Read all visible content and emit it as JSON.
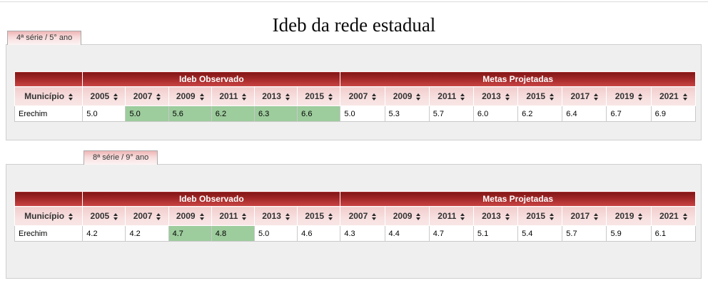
{
  "page": {
    "title": "Ideb da rede estadual"
  },
  "icons": {
    "sort": "triangle-up-down-sort-arrows"
  },
  "colors": {
    "header_red_top": "#801616",
    "header_red_bottom": "#ca4545",
    "header_pink": "#f6d9d9",
    "highlight_green": "#9dcc9d",
    "panel_gray": "#efefef"
  },
  "tables": [
    {
      "tab": "4ª série / 5° ano",
      "col_municipio": "Município",
      "group_observado": "Ideb Observado",
      "group_metas": "Metas Projetadas",
      "row_name": "Erechim",
      "obs": [
        {
          "year": "2005",
          "value": "5.0",
          "green": false
        },
        {
          "year": "2007",
          "value": "5.0",
          "green": true
        },
        {
          "year": "2009",
          "value": "5.6",
          "green": true
        },
        {
          "year": "2011",
          "value": "6.2",
          "green": true
        },
        {
          "year": "2013",
          "value": "6.3",
          "green": true
        },
        {
          "year": "2015",
          "value": "6.6",
          "green": true
        }
      ],
      "meta": [
        {
          "year": "2007",
          "value": "5.0"
        },
        {
          "year": "2009",
          "value": "5.3"
        },
        {
          "year": "2011",
          "value": "5.7"
        },
        {
          "year": "2013",
          "value": "6.0"
        },
        {
          "year": "2015",
          "value": "6.2"
        },
        {
          "year": "2017",
          "value": "6.4"
        },
        {
          "year": "2019",
          "value": "6.7"
        },
        {
          "year": "2021",
          "value": "6.9"
        }
      ]
    },
    {
      "tab": "8ª série / 9° ano",
      "col_municipio": "Município",
      "group_observado": "Ideb Observado",
      "group_metas": "Metas Projetadas",
      "row_name": "Erechim",
      "obs": [
        {
          "year": "2005",
          "value": "4.2",
          "green": false
        },
        {
          "year": "2007",
          "value": "4.2",
          "green": false
        },
        {
          "year": "2009",
          "value": "4.7",
          "green": true
        },
        {
          "year": "2011",
          "value": "4.8",
          "green": true
        },
        {
          "year": "2013",
          "value": "5.0",
          "green": false
        },
        {
          "year": "2015",
          "value": "4.6",
          "green": false
        }
      ],
      "meta": [
        {
          "year": "2007",
          "value": "4.3"
        },
        {
          "year": "2009",
          "value": "4.4"
        },
        {
          "year": "2011",
          "value": "4.7"
        },
        {
          "year": "2013",
          "value": "5.1"
        },
        {
          "year": "2015",
          "value": "5.4"
        },
        {
          "year": "2017",
          "value": "5.7"
        },
        {
          "year": "2019",
          "value": "5.9"
        },
        {
          "year": "2021",
          "value": "6.1"
        }
      ]
    }
  ]
}
